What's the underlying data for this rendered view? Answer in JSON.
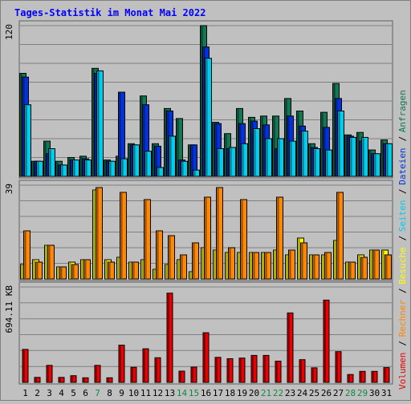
{
  "chart_data": {
    "type": "bar",
    "title": "Tages-Statistik im Monat Mai 2022",
    "days": [
      "1",
      "2",
      "3",
      "4",
      "5",
      "6",
      "7",
      "8",
      "9",
      "10",
      "11",
      "12",
      "13",
      "14",
      "15",
      "16",
      "17",
      "18",
      "19",
      "20",
      "21",
      "22",
      "23",
      "24",
      "25",
      "26",
      "27",
      "28",
      "29",
      "30",
      "31"
    ],
    "weekend_days": [
      7,
      14,
      15,
      21,
      22,
      28,
      29
    ],
    "panels": [
      {
        "name": "top",
        "scale_label": "120",
        "ylim": [
          0,
          120
        ],
        "series": [
          {
            "name": "Anfragen",
            "color": "#117755",
            "values": [
              82,
              12,
              28,
              12,
              15,
              16,
              86,
              13,
              16,
              26,
              64,
              26,
              54,
              46,
              25,
              120,
              43,
              34,
              54,
              47,
              48,
              48,
              62,
              52,
              26,
              51,
              74,
              33,
              35,
              21,
              29
            ]
          },
          {
            "name": "Dateien",
            "color": "#0033dd",
            "values": [
              79,
              12,
              18,
              9,
              13,
              14,
              82,
              12,
              67,
              25,
              57,
              24,
              52,
              13,
              25,
              103,
              42,
              22,
              42,
              44,
              41,
              22,
              48,
              40,
              23,
              39,
              62,
              32,
              28,
              18,
              26
            ]
          },
          {
            "name": "Seiten",
            "color": "#00ccee",
            "values": [
              57,
              12,
              22,
              9,
              13,
              13,
              84,
              12,
              14,
              25,
              20,
              7,
              32,
              12,
              5,
              94,
              22,
              23,
              26,
              38,
              30,
              30,
              28,
              36,
              22,
              21,
              52,
              31,
              31,
              18,
              26
            ]
          }
        ]
      },
      {
        "name": "mid",
        "scale_label": "39",
        "ylim": [
          0,
          39
        ],
        "series": [
          {
            "name": "Besuche",
            "color": "#ffff00",
            "values": [
              6,
              8,
              14,
              5,
              7,
              8,
              37,
              8,
              9,
              7,
              8,
              4,
              6,
              8,
              3,
              13,
              12,
              11,
              11,
              11,
              11,
              12,
              10,
              17,
              10,
              10,
              16,
              7,
              10,
              12,
              12
            ]
          },
          {
            "name": "Rechner",
            "color": "#ff8800",
            "values": [
              20,
              7,
              14,
              5,
              6,
              8,
              38,
              7,
              36,
              7,
              33,
              20,
              18,
              10,
              15,
              34,
              38,
              13,
              33,
              11,
              11,
              34,
              12,
              15,
              10,
              11,
              36,
              7,
              9,
              12,
              10
            ]
          }
        ]
      },
      {
        "name": "bottom",
        "scale_label": "694.11 KB",
        "ylim": [
          0,
          1000
        ],
        "series": [
          {
            "name": "Volumen",
            "color": "#ee0000",
            "values": [
              345,
              52,
              178,
              52,
              70,
              48,
              178,
              48,
              390,
              158,
              352,
              258,
              935,
              118,
              160,
              520,
              262,
              248,
              255,
              282,
              282,
              222,
              728,
              238,
              152,
              862,
              322,
              82,
              115,
              115,
              155
            ]
          }
        ]
      }
    ],
    "legend": {
      "placement": "right-vertical",
      "entries": [
        {
          "label": "Volumen",
          "color": "#ee0000"
        },
        {
          "label": "Rechner",
          "color": "#ff8800"
        },
        {
          "label": "Besuche",
          "color": "#ffff00"
        },
        {
          "label": "Seiten",
          "color": "#00ccee"
        },
        {
          "label": "Dateien",
          "color": "#0033dd"
        },
        {
          "label": "Anfragen",
          "color": "#117755"
        }
      ],
      "separator": "/"
    },
    "colors": {
      "background": "#c0c0c0",
      "title": "#0000ff",
      "weekday_label": "#000000",
      "weekend_label": "#118844",
      "gridline": "#808080"
    }
  }
}
